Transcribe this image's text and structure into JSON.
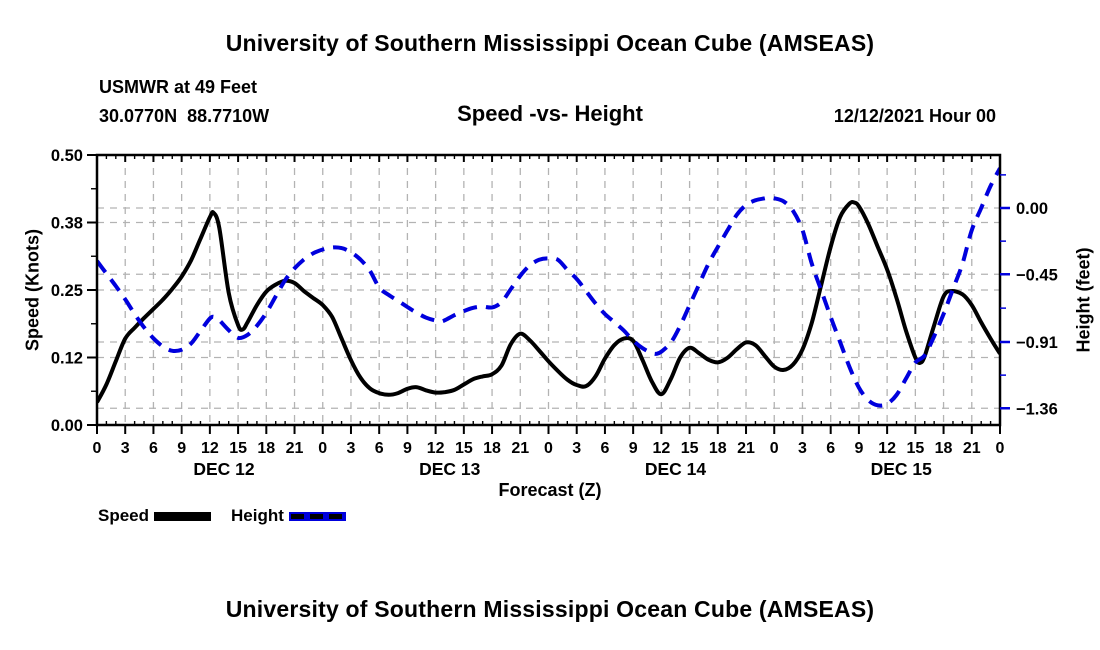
{
  "page": {
    "top_title": "University of Southern Mississippi Ocean Cube (AMSEAS)",
    "bottom_title": "University of Southern Mississippi Ocean Cube (AMSEAS)"
  },
  "header": {
    "station": "USMWR at 49 Feet",
    "coordinates": "30.0770N  88.7710W",
    "subtitle": "Speed -vs- Height",
    "datetime": "12/12/2021 Hour 00"
  },
  "axes": {
    "left_label": "Speed (Knots)",
    "right_label": "Height (feet)",
    "x_label": "Forecast (Z)",
    "speed_ticks": [
      {
        "label": "0.50",
        "value": 0.5
      },
      {
        "label": "0.38",
        "value": 0.375
      },
      {
        "label": "0.25",
        "value": 0.25
      },
      {
        "label": "0.12",
        "value": 0.125
      },
      {
        "label": "0.00",
        "value": 0.0
      }
    ],
    "height_ticks": [
      {
        "label": "0.00",
        "value": 0.0
      },
      {
        "label": "−0.45",
        "value": -0.45
      },
      {
        "label": "−0.91",
        "value": -0.91
      },
      {
        "label": "−1.36",
        "value": -1.36
      }
    ],
    "x_tick_labels": [
      "0",
      "3",
      "6",
      "9",
      "12",
      "15",
      "18",
      "21",
      "0",
      "3",
      "6",
      "9",
      "12",
      "15",
      "18",
      "21",
      "0",
      "3",
      "6",
      "9",
      "12",
      "15",
      "18",
      "21",
      "0",
      "3",
      "6",
      "9",
      "12",
      "15",
      "18",
      "21",
      "0"
    ],
    "date_labels": [
      {
        "label": "DEC 12",
        "hour": 13.5
      },
      {
        "label": "DEC 13",
        "hour": 37.5
      },
      {
        "label": "DEC 14",
        "hour": 61.5
      },
      {
        "label": "DEC 15",
        "hour": 85.5
      }
    ]
  },
  "legend": {
    "items": [
      {
        "label": "Speed",
        "color": "#000000",
        "style": "solid"
      },
      {
        "label": "Height",
        "color": "#0000dd",
        "style": "dashed"
      }
    ]
  },
  "colors": {
    "speed_line": "#000000",
    "height_line": "#0000dd",
    "grid": "#b3b3b3",
    "axis": "#000000"
  },
  "chart_data": {
    "type": "line",
    "title": "Speed -vs- Height",
    "xlabel": "Forecast (Z)",
    "x_unit": "hours since 2021-12-12 00Z",
    "x_range_hours": [
      0,
      96
    ],
    "x_tick_step_hours": 3,
    "left_axis": {
      "label": "Speed (Knots)",
      "min": 0.0,
      "max": 0.5,
      "tick_values": [
        0.0,
        0.125,
        0.25,
        0.375,
        0.5
      ]
    },
    "right_axis": {
      "label": "Height (feet)",
      "tick_values": [
        0.0,
        -0.45,
        -0.91,
        -1.36
      ],
      "top_value": 0.359,
      "bottom_value": -1.468
    },
    "grid": true,
    "legend_position": "below",
    "series": [
      {
        "name": "Speed",
        "units": "knots",
        "axis": "left",
        "color": "#000000",
        "style": "solid",
        "points": [
          [
            0,
            0.042
          ],
          [
            1,
            0.075
          ],
          [
            2,
            0.118
          ],
          [
            3,
            0.16
          ],
          [
            4,
            0.18
          ],
          [
            5,
            0.198
          ],
          [
            6,
            0.215
          ],
          [
            7,
            0.232
          ],
          [
            8,
            0.252
          ],
          [
            9,
            0.275
          ],
          [
            10,
            0.305
          ],
          [
            11,
            0.345
          ],
          [
            12,
            0.385
          ],
          [
            12.4,
            0.393
          ],
          [
            13,
            0.365
          ],
          [
            14,
            0.245
          ],
          [
            15,
            0.185
          ],
          [
            15.5,
            0.177
          ],
          [
            16,
            0.19
          ],
          [
            17,
            0.222
          ],
          [
            18,
            0.247
          ],
          [
            19,
            0.26
          ],
          [
            20,
            0.267
          ],
          [
            21,
            0.263
          ],
          [
            22,
            0.248
          ],
          [
            23,
            0.235
          ],
          [
            24,
            0.222
          ],
          [
            25,
            0.2
          ],
          [
            26,
            0.16
          ],
          [
            27,
            0.12
          ],
          [
            28,
            0.088
          ],
          [
            29,
            0.068
          ],
          [
            30,
            0.059
          ],
          [
            31,
            0.056
          ],
          [
            32,
            0.059
          ],
          [
            33,
            0.067
          ],
          [
            34,
            0.07
          ],
          [
            35,
            0.064
          ],
          [
            36,
            0.06
          ],
          [
            37,
            0.061
          ],
          [
            38,
            0.065
          ],
          [
            39,
            0.075
          ],
          [
            40,
            0.085
          ],
          [
            41,
            0.09
          ],
          [
            42,
            0.094
          ],
          [
            43,
            0.11
          ],
          [
            44,
            0.15
          ],
          [
            45,
            0.169
          ],
          [
            46,
            0.157
          ],
          [
            47,
            0.138
          ],
          [
            48,
            0.118
          ],
          [
            49,
            0.1
          ],
          [
            50,
            0.084
          ],
          [
            51,
            0.074
          ],
          [
            52,
            0.072
          ],
          [
            53,
            0.09
          ],
          [
            54,
            0.123
          ],
          [
            55,
            0.148
          ],
          [
            56,
            0.16
          ],
          [
            57,
            0.156
          ],
          [
            58,
            0.12
          ],
          [
            59,
            0.08
          ],
          [
            60,
            0.057
          ],
          [
            61,
            0.085
          ],
          [
            62,
            0.125
          ],
          [
            63,
            0.143
          ],
          [
            64,
            0.133
          ],
          [
            65,
            0.121
          ],
          [
            66,
            0.116
          ],
          [
            67,
            0.124
          ],
          [
            68,
            0.14
          ],
          [
            69,
            0.153
          ],
          [
            70,
            0.148
          ],
          [
            71,
            0.128
          ],
          [
            72,
            0.108
          ],
          [
            73,
            0.102
          ],
          [
            74,
            0.112
          ],
          [
            75,
            0.14
          ],
          [
            76,
            0.19
          ],
          [
            77,
            0.26
          ],
          [
            78,
            0.33
          ],
          [
            79,
            0.385
          ],
          [
            80,
            0.41
          ],
          [
            80.5,
            0.412
          ],
          [
            81,
            0.405
          ],
          [
            82,
            0.372
          ],
          [
            83,
            0.33
          ],
          [
            84,
            0.288
          ],
          [
            85,
            0.235
          ],
          [
            86,
            0.175
          ],
          [
            87,
            0.125
          ],
          [
            87.5,
            0.115
          ],
          [
            88,
            0.128
          ],
          [
            89,
            0.185
          ],
          [
            90,
            0.238
          ],
          [
            90.8,
            0.248
          ],
          [
            92,
            0.242
          ],
          [
            93,
            0.222
          ],
          [
            94,
            0.19
          ],
          [
            95,
            0.16
          ],
          [
            96,
            0.132
          ]
        ]
      },
      {
        "name": "Height",
        "units": "feet",
        "axis": "right",
        "color": "#0000dd",
        "style": "dashed",
        "points": [
          [
            0,
            -0.36
          ],
          [
            1,
            -0.445
          ],
          [
            2,
            -0.53
          ],
          [
            3,
            -0.62
          ],
          [
            4,
            -0.72
          ],
          [
            5,
            -0.81
          ],
          [
            6,
            -0.885
          ],
          [
            7,
            -0.94
          ],
          [
            8,
            -0.97
          ],
          [
            9,
            -0.962
          ],
          [
            10,
            -0.92
          ],
          [
            11,
            -0.835
          ],
          [
            12,
            -0.75
          ],
          [
            12.5,
            -0.74
          ],
          [
            13,
            -0.762
          ],
          [
            14,
            -0.83
          ],
          [
            15,
            -0.882
          ],
          [
            16,
            -0.862
          ],
          [
            17,
            -0.8
          ],
          [
            18,
            -0.712
          ],
          [
            19,
            -0.6
          ],
          [
            20,
            -0.49
          ],
          [
            21,
            -0.41
          ],
          [
            22,
            -0.35
          ],
          [
            23,
            -0.307
          ],
          [
            24,
            -0.282
          ],
          [
            25,
            -0.268
          ],
          [
            26,
            -0.272
          ],
          [
            27,
            -0.3
          ],
          [
            28,
            -0.35
          ],
          [
            29,
            -0.425
          ],
          [
            30,
            -0.54
          ],
          [
            31,
            -0.59
          ],
          [
            32,
            -0.63
          ],
          [
            33,
            -0.672
          ],
          [
            34,
            -0.712
          ],
          [
            35,
            -0.745
          ],
          [
            36,
            -0.765
          ],
          [
            36.6,
            -0.77
          ],
          [
            37,
            -0.762
          ],
          [
            38,
            -0.728
          ],
          [
            39,
            -0.7
          ],
          [
            40,
            -0.678
          ],
          [
            41,
            -0.67
          ],
          [
            42,
            -0.675
          ],
          [
            43,
            -0.64
          ],
          [
            44,
            -0.55
          ],
          [
            45,
            -0.46
          ],
          [
            46,
            -0.39
          ],
          [
            47,
            -0.352
          ],
          [
            48,
            -0.342
          ],
          [
            49,
            -0.352
          ],
          [
            50,
            -0.42
          ],
          [
            51,
            -0.482
          ],
          [
            52,
            -0.565
          ],
          [
            53,
            -0.648
          ],
          [
            54,
            -0.72
          ],
          [
            55,
            -0.775
          ],
          [
            56,
            -0.832
          ],
          [
            57,
            -0.9
          ],
          [
            58,
            -0.952
          ],
          [
            59,
            -0.985
          ],
          [
            59.5,
            -0.99
          ],
          [
            60,
            -0.975
          ],
          [
            61,
            -0.915
          ],
          [
            62,
            -0.8
          ],
          [
            63,
            -0.66
          ],
          [
            64,
            -0.52
          ],
          [
            65,
            -0.38
          ],
          [
            66,
            -0.265
          ],
          [
            67,
            -0.155
          ],
          [
            68,
            -0.048
          ],
          [
            69,
            0.02
          ],
          [
            70,
            0.052
          ],
          [
            71,
            0.066
          ],
          [
            71.5,
            0.07
          ],
          [
            72,
            0.066
          ],
          [
            73,
            0.045
          ],
          [
            74,
            -0.02
          ],
          [
            75,
            -0.15
          ],
          [
            76,
            -0.38
          ],
          [
            77,
            -0.56
          ],
          [
            78,
            -0.74
          ],
          [
            79,
            -0.91
          ],
          [
            80,
            -1.08
          ],
          [
            81,
            -1.22
          ],
          [
            82,
            -1.305
          ],
          [
            83,
            -1.34
          ],
          [
            84,
            -1.33
          ],
          [
            85,
            -1.27
          ],
          [
            86,
            -1.16
          ],
          [
            87,
            -1.05
          ],
          [
            88,
            -1.0
          ],
          [
            89,
            -0.87
          ],
          [
            90,
            -0.72
          ],
          [
            91,
            -0.55
          ],
          [
            92,
            -0.38
          ],
          [
            93,
            -0.15
          ],
          [
            94,
            0.0
          ],
          [
            95,
            0.15
          ],
          [
            96,
            0.27
          ]
        ]
      }
    ]
  }
}
